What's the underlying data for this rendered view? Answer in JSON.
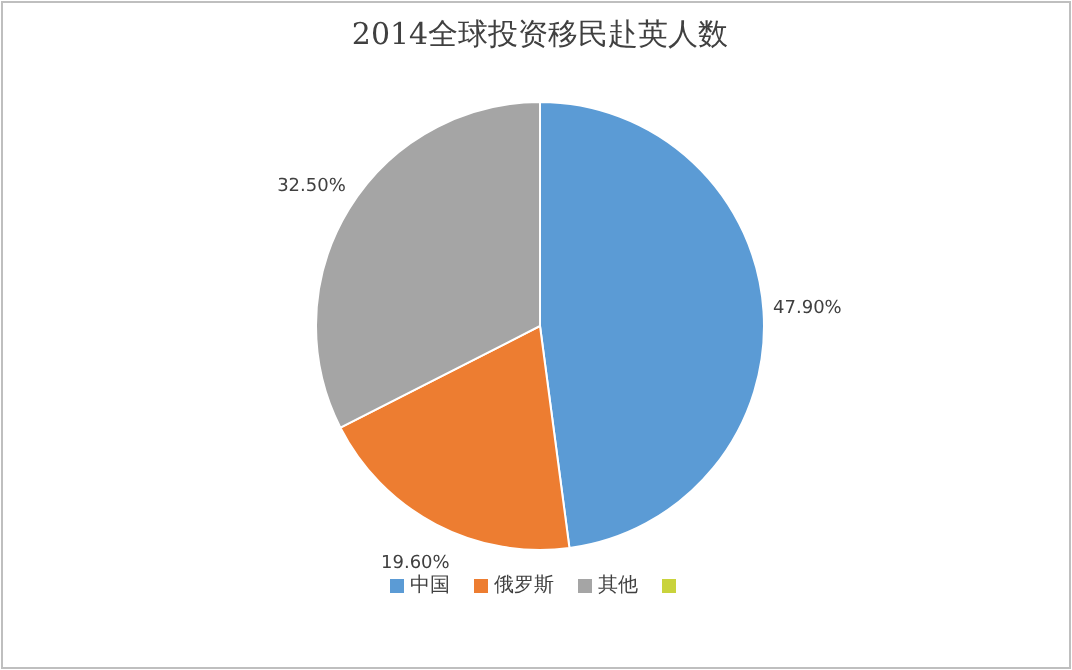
{
  "chart_data": {
    "type": "pie",
    "title": "2014全球投资移民赴英人数",
    "categories": [
      "中国",
      "俄罗斯",
      "其他"
    ],
    "values": [
      47.9,
      19.6,
      32.5
    ],
    "value_labels": [
      "47.90%",
      "19.60%",
      "32.50%"
    ],
    "colors": [
      "#5b9bd5",
      "#ed7d31",
      "#a5a5a5"
    ],
    "legend": "bottom"
  }
}
